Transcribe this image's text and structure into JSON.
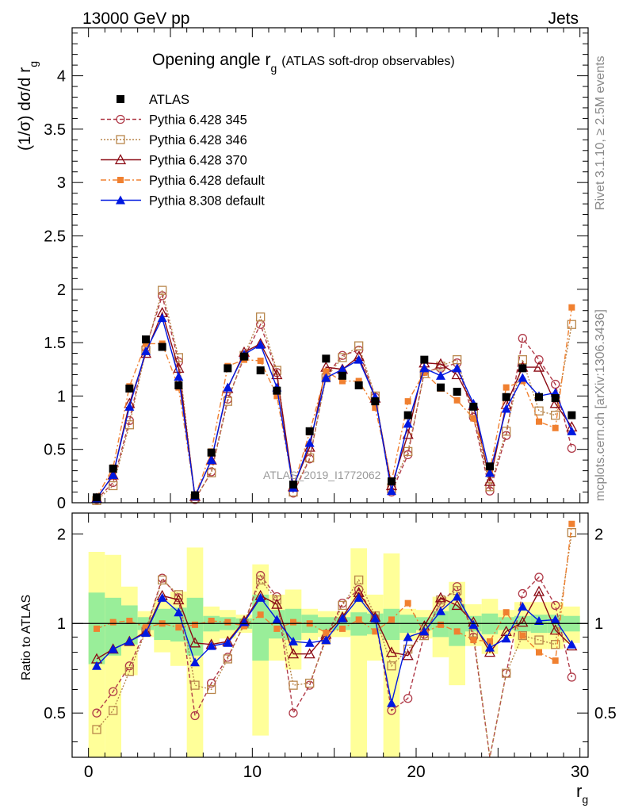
{
  "header": {
    "energy_label": "13000 GeV pp",
    "process_label": "Jets",
    "rivet_label": "Rivet 3.1.10, ≥ 2.5M events",
    "mcplots_label": "mcplots.cern.ch [arXiv:1306.3436]"
  },
  "chart_data": [
    {
      "type": "scatter",
      "panel": "main",
      "title": "Opening angle r",
      "title_sub": "g",
      "title_note": "(ATLAS soft-drop observables)",
      "ylabel": "(1/σ) dσ/d r",
      "ylabel_sub": "g",
      "watermark": "ATLAS_2019_I1772062",
      "xlim": [
        -1,
        30.5
      ],
      "ylim": [
        0,
        4.45
      ],
      "yticks": [
        0,
        0.5,
        1,
        1.5,
        2,
        2.5,
        3,
        3.5,
        4
      ],
      "ytick_labels": [
        "0",
        "0.5",
        "1",
        "1.5",
        "2",
        "2.5",
        "3",
        "3.5",
        "4"
      ],
      "legend_position": "top-left",
      "x": [
        0.5,
        1.5,
        2.5,
        3.5,
        4.5,
        5.5,
        6.5,
        7.5,
        8.5,
        9.5,
        10.5,
        11.5,
        12.5,
        13.5,
        14.5,
        15.5,
        16.5,
        17.5,
        18.5,
        19.5,
        20.5,
        21.5,
        22.5,
        23.5,
        24.5,
        25.5,
        26.5,
        27.5,
        28.5,
        29.5
      ],
      "series": [
        {
          "name": "ATLAS",
          "color": "#000000",
          "marker": "filled-square",
          "line": "none",
          "values": [
            0.05,
            0.32,
            1.07,
            1.53,
            1.46,
            1.1,
            0.07,
            0.47,
            1.26,
            1.37,
            1.24,
            1.05,
            0.17,
            0.67,
            1.35,
            1.19,
            1.1,
            0.95,
            0.2,
            0.82,
            1.34,
            1.08,
            1.04,
            0.9,
            0.34,
            0.99,
            1.26,
            0.99,
            0.98,
            0.82
          ]
        },
        {
          "name": "Pythia 6.428 345",
          "color": "#b03a48",
          "marker": "open-circle",
          "line": "dashed",
          "values": [
            0.03,
            0.19,
            0.77,
            1.45,
            1.94,
            1.32,
            0.03,
            0.29,
            0.97,
            1.36,
            1.67,
            1.22,
            0.09,
            0.41,
            1.19,
            1.38,
            1.43,
            0.99,
            0.1,
            0.45,
            1.23,
            1.26,
            1.31,
            0.8,
            0.11,
            0.63,
            1.54,
            1.34,
            1.11,
            0.51
          ]
        },
        {
          "name": "Pythia 6.428 346",
          "color": "#b8864b",
          "marker": "open-square",
          "line": "dotted",
          "values": [
            0.02,
            0.16,
            0.73,
            1.43,
            1.99,
            1.36,
            0.04,
            0.28,
            0.95,
            1.38,
            1.74,
            1.24,
            0.1,
            0.42,
            1.17,
            1.36,
            1.47,
            1.0,
            0.14,
            0.48,
            1.21,
            1.28,
            1.34,
            0.84,
            0.15,
            0.67,
            1.34,
            0.86,
            0.82,
            1.67
          ]
        },
        {
          "name": "Pythia 6.428 370",
          "color": "#8b0a14",
          "marker": "open-triangle",
          "line": "solid",
          "values": [
            0.04,
            0.26,
            0.93,
            1.4,
            1.78,
            1.26,
            0.06,
            0.4,
            1.07,
            1.41,
            1.49,
            1.2,
            0.15,
            0.52,
            1.27,
            1.25,
            1.37,
            0.98,
            0.16,
            0.64,
            1.31,
            1.3,
            1.2,
            0.91,
            0.2,
            0.92,
            1.27,
            1.27,
            0.93,
            0.71
          ]
        },
        {
          "name": "Pythia 6.428 default",
          "color": "#f08030",
          "marker": "filled-square-small",
          "line": "dashdot",
          "values": [
            0.05,
            0.33,
            1.09,
            1.49,
            1.49,
            1.08,
            0.06,
            0.48,
            1.28,
            1.34,
            1.33,
            1.0,
            0.15,
            0.66,
            1.23,
            1.14,
            1.14,
            0.89,
            0.2,
            0.95,
            1.22,
            1.07,
            0.96,
            0.79,
            0.3,
            1.08,
            1.14,
            0.76,
            0.7,
            1.83
          ]
        },
        {
          "name": "Pythia 8.308 default",
          "color": "#0018e0",
          "marker": "filled-triangle",
          "line": "solid",
          "values": [
            0.04,
            0.26,
            0.9,
            1.42,
            1.73,
            1.18,
            0.06,
            0.4,
            1.08,
            1.39,
            1.48,
            1.08,
            0.14,
            0.56,
            1.17,
            1.25,
            1.34,
            0.99,
            0.11,
            0.74,
            1.26,
            1.19,
            1.26,
            0.93,
            0.28,
            0.88,
            1.17,
            1.0,
            1.03,
            0.67
          ]
        }
      ]
    },
    {
      "type": "scatter",
      "panel": "ratio",
      "ylabel": "Ratio to ATLAS",
      "xlabel": "r",
      "xlabel_sub": "g",
      "xlim": [
        -1,
        30.5
      ],
      "ylim": [
        0.355,
        2.35
      ],
      "yticks": [
        0.5,
        1,
        2
      ],
      "ytick_labels": [
        "0.5",
        "1",
        "2"
      ],
      "xticks": [
        0,
        10,
        20,
        30
      ],
      "xtick_labels": [
        "0",
        "10",
        "20",
        "30"
      ],
      "band_1sigma_half": [
        0.27,
        0.22,
        0.15,
        0.05,
        0.12,
        0.13,
        0.22,
        0.06,
        0.05,
        0.04,
        0.25,
        0.11,
        0.12,
        0.07,
        0.05,
        0.05,
        0.09,
        0.08,
        0.12,
        0.07,
        0.05,
        0.1,
        0.16,
        0.06,
        0.08,
        0.05,
        0.06,
        0.07,
        0.07,
        0.06
      ],
      "band_2sigma_half": [
        0.74,
        0.7,
        0.33,
        0.1,
        0.2,
        0.28,
        0.8,
        0.14,
        0.11,
        0.07,
        0.58,
        0.25,
        0.3,
        0.12,
        0.1,
        0.1,
        0.79,
        0.25,
        0.72,
        0.12,
        0.11,
        0.23,
        0.38,
        0.16,
        0.21,
        0.11,
        0.18,
        0.18,
        0.18,
        0.14
      ],
      "series": [
        {
          "name": "Pythia 6.428 345",
          "values": [
            0.5,
            0.59,
            0.72,
            0.95,
            1.42,
            1.22,
            0.49,
            0.63,
            0.77,
            0.99,
            1.45,
            1.23,
            0.5,
            0.62,
            0.9,
            1.17,
            1.3,
            1.04,
            0.51,
            0.56,
            0.92,
            1.17,
            1.33,
            0.9,
            0.3,
            0.68,
            1.26,
            1.43,
            1.15,
            0.66
          ]
        },
        {
          "name": "Pythia 6.428 346",
          "values": [
            0.44,
            0.51,
            0.69,
            0.94,
            1.4,
            1.25,
            0.62,
            0.6,
            0.76,
            1.0,
            1.4,
            1.2,
            0.62,
            0.63,
            0.88,
            1.15,
            1.4,
            1.06,
            0.72,
            0.82,
            0.91,
            1.2,
            1.29,
            0.93,
            0.3,
            0.68,
            0.91,
            0.88,
            0.85,
            2.02
          ]
        },
        {
          "name": "Pythia 6.428 370",
          "values": [
            0.76,
            0.82,
            0.87,
            0.94,
            1.24,
            1.2,
            0.86,
            0.85,
            0.87,
            1.02,
            1.24,
            1.16,
            0.79,
            0.79,
            0.92,
            1.05,
            1.27,
            1.05,
            0.8,
            0.78,
            0.98,
            1.22,
            1.15,
            1.01,
            0.8,
            0.94,
            1.01,
            1.28,
            0.95,
            0.84
          ]
        },
        {
          "name": "Pythia 6.428 default",
          "values": [
            0.96,
            1.01,
            1.02,
            0.97,
            1.0,
            0.97,
            0.99,
            1.02,
            1.01,
            0.98,
            1.07,
            0.96,
            1.01,
            1.0,
            0.93,
            0.96,
            1.03,
            0.94,
            1.03,
            1.17,
            0.93,
            0.99,
            0.94,
            0.88,
            0.87,
            1.09,
            0.91,
            0.8,
            0.75,
            2.16
          ]
        },
        {
          "name": "Pythia 8.308 default",
          "values": [
            0.72,
            0.82,
            0.87,
            0.93,
            1.22,
            1.09,
            0.74,
            0.84,
            0.86,
            1.01,
            1.22,
            1.03,
            0.87,
            0.86,
            0.88,
            1.04,
            1.22,
            1.04,
            0.54,
            0.9,
            0.94,
            1.1,
            1.23,
            0.99,
            0.83,
            0.89,
            1.14,
            1.02,
            1.03,
            0.85
          ]
        }
      ]
    }
  ]
}
